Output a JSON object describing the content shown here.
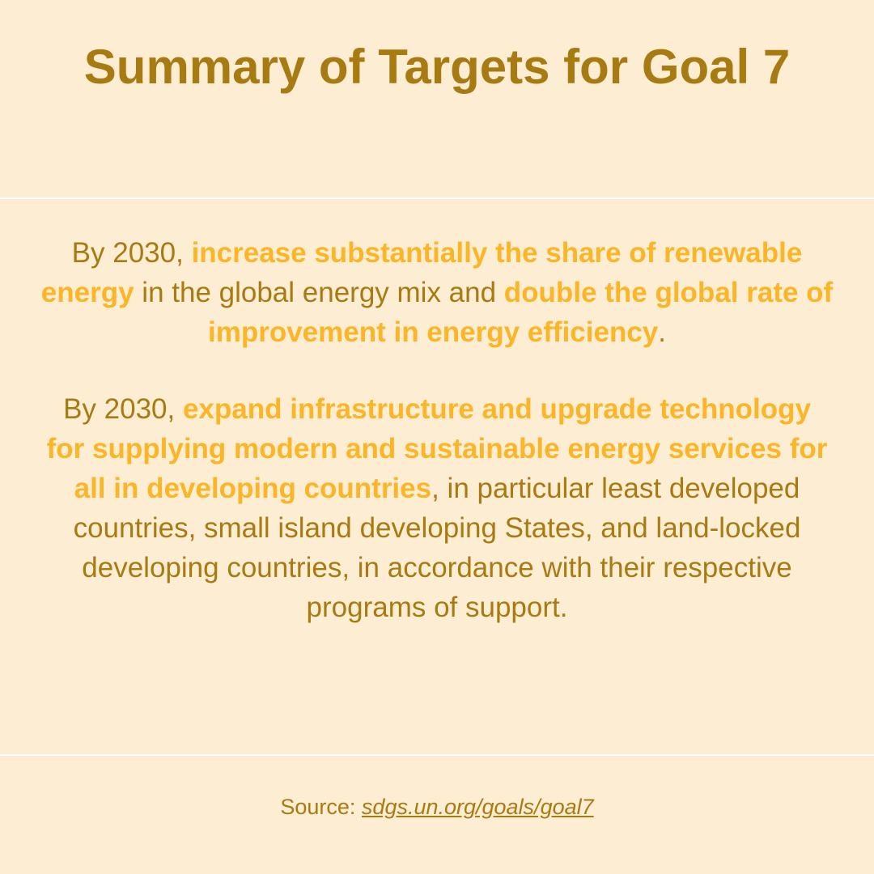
{
  "header": {
    "title": "Summary of Targets for Goal 7"
  },
  "paragraphs": [
    {
      "runs": [
        {
          "text": "By 2030, ",
          "highlight": false
        },
        {
          "text": "increase substantially the share of renewable energy",
          "highlight": true
        },
        {
          "text": " in the global energy mix and ",
          "highlight": false
        },
        {
          "text": "double the global rate of improvement in energy efficiency",
          "highlight": true
        },
        {
          "text": ".",
          "highlight": false
        }
      ]
    },
    {
      "runs": [
        {
          "text": "By 2030, ",
          "highlight": false
        },
        {
          "text": "expand infrastructure and upgrade technology for supplying modern and sustainable energy services for all in developing countries",
          "highlight": true
        },
        {
          "text": ", in particular least developed countries, small island developing States, and land-locked developing countries, in accordance with their respective programs of support.",
          "highlight": false
        }
      ]
    }
  ],
  "footer": {
    "label": "Source: ",
    "link": "sdgs.un.org/goals/goal7"
  }
}
